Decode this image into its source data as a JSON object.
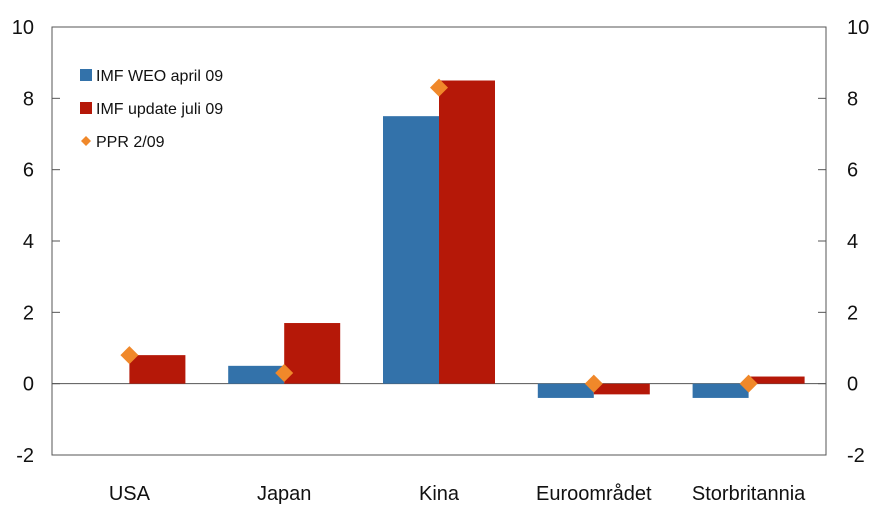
{
  "chart_data": {
    "type": "bar",
    "title": "",
    "xlabel": "",
    "ylabel": "",
    "categories": [
      "USA",
      "Japan",
      "Kina",
      "Euroområdet",
      "Storbritannia"
    ],
    "ylim": [
      -2,
      10
    ],
    "yticks": [
      -2,
      0,
      2,
      4,
      6,
      8,
      10
    ],
    "secondary_axis": true,
    "grid": false,
    "legend_position": "top-left",
    "series": [
      {
        "name": "IMF WEO april 09",
        "type": "bar",
        "color": "#3372aa",
        "values": [
          0.0,
          0.5,
          7.5,
          -0.4,
          -0.4
        ]
      },
      {
        "name": "IMF update juli 09",
        "type": "bar",
        "color": "#b51808",
        "values": [
          0.8,
          1.7,
          8.5,
          -0.3,
          0.2
        ]
      },
      {
        "name": "PPR 2/09",
        "type": "scatter",
        "marker": "diamond",
        "color": "#f0882a",
        "values": [
          0.8,
          0.3,
          8.3,
          0.0,
          0.0
        ]
      }
    ]
  }
}
